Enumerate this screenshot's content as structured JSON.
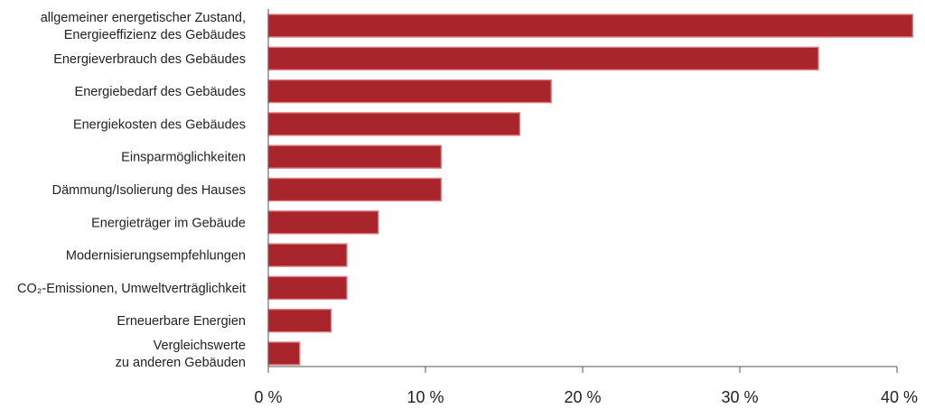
{
  "chart_data": {
    "type": "bar",
    "orientation": "horizontal",
    "title": "",
    "xlabel": "",
    "ylabel": "",
    "categories": [
      "allgemeiner energetischer Zustand,\nEnergieeffizienz des Gebäudes",
      "Energieverbrauch des Gebäudes",
      "Energiebedarf des Gebäudes",
      "Energiekosten des Gebäudes",
      "Einsparmöglichkeiten",
      "Dämmung/Isolierung des Hauses",
      "Energieträger im Gebäude",
      "Modernisierungsempfehlungen",
      "CO₂-Emissionen, Umweltverträglichkeit",
      "Erneuerbare Energien",
      "Vergleichswerte\nzu anderen Gebäuden"
    ],
    "values": [
      41,
      35,
      18,
      16,
      11,
      11,
      7,
      5,
      5,
      4,
      2
    ],
    "xlim": [
      0,
      40
    ],
    "xticks": [
      0,
      10,
      20,
      30,
      40
    ],
    "xtick_labels": [
      "0 %",
      "10 %",
      "20 %",
      "30 %",
      "40 %"
    ],
    "grid": false,
    "legend": "none",
    "colors": {
      "bar": "#a8252c",
      "bar_edge": "#e07e80",
      "axis": "#555555"
    }
  }
}
